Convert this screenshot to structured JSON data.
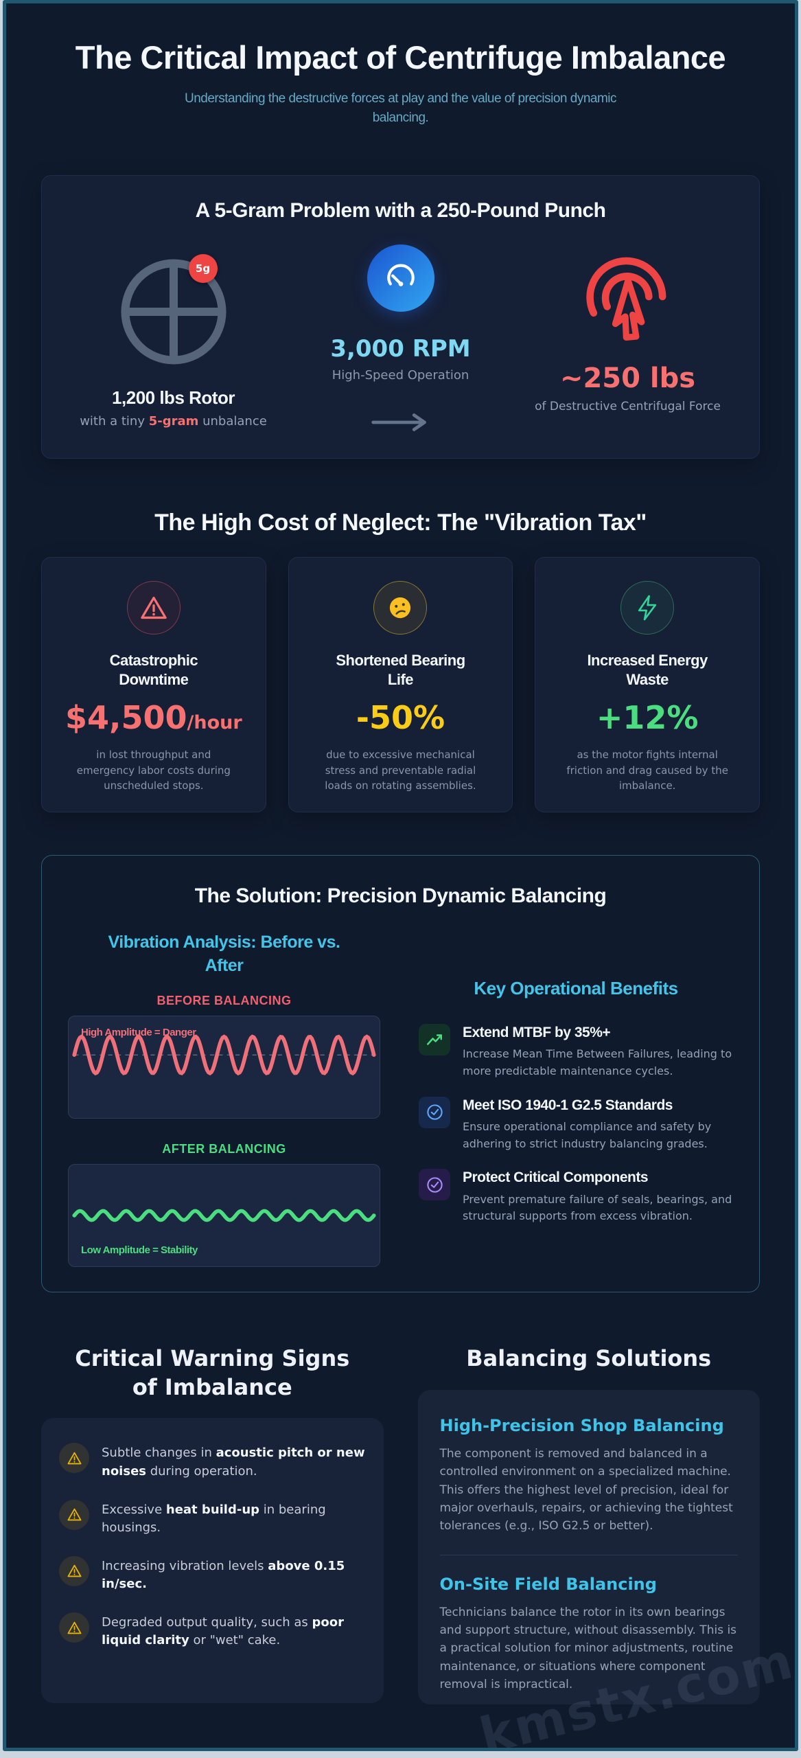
{
  "page": {
    "title": "The Critical Impact of Centrifuge Imbalance",
    "subtitle": "Understanding the destructive forces at play and the value of precision dynamic balancing.",
    "watermark": "kmstx.com"
  },
  "colors": {
    "background": "#0f1a2c",
    "accent_cyan": "#45c4e9",
    "danger_red": "#f87171",
    "warning_yellow": "#facc15",
    "success_green": "#4ade80",
    "rpm_blue": "#7fd8f2"
  },
  "problem_card": {
    "title": "A 5-Gram Problem with a 250-Pound Punch",
    "rotor": {
      "icon": "rotor-crosshair-icon",
      "badge": "5g",
      "label": "1,200 lbs Rotor",
      "sub_prefix": "with a tiny ",
      "sub_highlight": "5-gram",
      "sub_suffix": " unbalance"
    },
    "speed": {
      "icon": "gauge-icon",
      "value": "3,000 RPM",
      "label": "High-Speed Operation"
    },
    "force": {
      "icon": "impact-cursor-icon",
      "value": "~250 lbs",
      "label": "of Destructive Centrifugal Force"
    }
  },
  "cost_section": {
    "heading": "The High Cost of Neglect: The \"Vibration Tax\"",
    "cards": [
      {
        "icon": "alert-triangle-icon",
        "title": "Catastrophic Downtime",
        "value": "$4,500",
        "value_suffix": "/hour",
        "description": "in lost throughput and emergency labor costs during unscheduled stops."
      },
      {
        "icon": "frown-face-icon",
        "title": "Shortened Bearing Life",
        "value": "-50%",
        "value_suffix": "",
        "description": "due to excessive mechanical stress and preventable radial loads on rotating assemblies."
      },
      {
        "icon": "lightning-bolt-icon",
        "title": "Increased Energy Waste",
        "value": "+12%",
        "value_suffix": "",
        "description": "as the motor fights internal friction and drag caused by the imbalance."
      }
    ]
  },
  "solution_section": {
    "heading": "The Solution: Precision Dynamic Balancing",
    "analysis_title": "Vibration Analysis: Before vs. After",
    "benefits_heading": "Key Operational Benefits",
    "benefits": [
      {
        "icon": "trending-up-icon",
        "title": "Extend MTBF by 35%+",
        "description": "Increase Mean Time Between Failures, leading to more predictable maintenance cycles."
      },
      {
        "icon": "check-circle-icon",
        "title": "Meet ISO 1940-1 G2.5 Standards",
        "description": "Ensure operational compliance and safety by adhering to strict industry balancing grades."
      },
      {
        "icon": "check-circle-icon",
        "title": "Protect Critical Components",
        "description": "Prevent premature failure of seals, bearings, and structural supports from excess vibration."
      }
    ]
  },
  "warnings_section": {
    "heading": "Critical Warning Signs of Imbalance",
    "items": [
      {
        "icon": "warning-triangle-icon",
        "prefix": "Subtle changes in ",
        "bold": "acoustic pitch or new noises",
        "suffix": " during operation."
      },
      {
        "icon": "warning-triangle-icon",
        "prefix": "Excessive ",
        "bold": "heat build-up",
        "suffix": " in bearing housings."
      },
      {
        "icon": "warning-triangle-icon",
        "prefix": "Increasing vibration levels ",
        "bold": "above 0.15 in/sec.",
        "suffix": ""
      },
      {
        "icon": "warning-triangle-icon",
        "prefix": "Degraded output quality, such as ",
        "bold": "poor liquid clarity",
        "suffix": " or \"wet\" cake."
      }
    ]
  },
  "solutions_section": {
    "heading": "Balancing Solutions",
    "options": [
      {
        "title": "High-Precision Shop Balancing",
        "description": "The component is removed and balanced in a controlled environment on a specialized machine. This offers the highest level of precision, ideal for major overhauls, repairs, or achieving the tightest tolerances (e.g., ISO G2.5 or better)."
      },
      {
        "title": "On-Site Field Balancing",
        "description": "Technicians balance the rotor in its own bearings and support structure, without disassembly. This is a practical solution for minor adjustments, routine maintenance, or situations where component removal is impractical."
      }
    ]
  },
  "chart_data": [
    {
      "type": "line",
      "title": "BEFORE BALANCING",
      "annotation": "High Amplitude = Danger",
      "waveform": "sine",
      "cycles": 10.5,
      "amplitude_frac": 0.18,
      "mid_frac": 0.38,
      "color": "#f0707a",
      "baseline_dashed": true
    },
    {
      "type": "line",
      "title": "AFTER BALANCING",
      "annotation": "Low Amplitude = Stability",
      "waveform": "sine",
      "cycles": 13,
      "amplitude_frac": 0.045,
      "mid_frac": 0.5,
      "color": "#4ade80",
      "baseline_dashed": false
    }
  ]
}
